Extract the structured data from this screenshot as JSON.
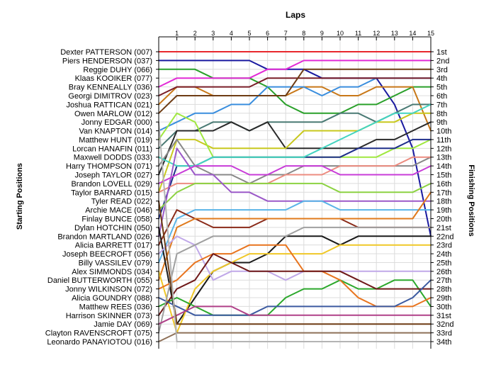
{
  "chart_data": {
    "type": "line",
    "title": "",
    "xlabel": "Laps",
    "ylabel_left": "Starting Positions",
    "ylabel_right": "Finishing Positions",
    "laps": [
      1,
      2,
      3,
      4,
      5,
      6,
      7,
      8,
      9,
      10,
      11,
      12,
      13,
      14,
      15
    ],
    "x_range": [
      0,
      15
    ],
    "y_range": [
      1,
      34
    ],
    "y_inverted": true,
    "grid": true,
    "drivers": [
      "Dexter PATTERSON (007)",
      "Piers HENDERSON (037)",
      "Reggie DUHY (066)",
      "Klaas KOOIKER (077)",
      "Bray KENNEALLY (036)",
      "Georgi DIMITROV (023)",
      "Joshua RATTICAN (021)",
      "Owen MARLOW (012)",
      "Jonny EDGAR (000)",
      "Van KNAPTON (014)",
      "Matthew HUNT (019)",
      "Lorcan HANAFIN (011)",
      "Maxwell DODDS (033)",
      "Harry THOMPSON (071)",
      "Joseph TAYLOR (027)",
      "Brandon LOVELL (029)",
      "Taylor BARNARD (015)",
      "Tyler READ (022)",
      "Archie MACE (046)",
      "Finlay BUNCE (058)",
      "Dylan HOTCHIN (050)",
      "Brandon MARTLAND (026)",
      "Alicia BARRETT (017)",
      "Joseph BEECROFT (056)",
      "Billy VASSILEV (079)",
      "Alex SIMMONDS (034)",
      "Daniel BUTTERWORTH (055)",
      "Jonny WILKINSON (072)",
      "Alicia GOUNDRY (088)",
      "Matthew REES (036)",
      "Harrison SKINNER (073)",
      "Jamie DAY (069)",
      "Clayton RAVENSCROFT (075)",
      "Leonardo PANAYIOTOU (016)"
    ],
    "finishing_positions": [
      "1st",
      "2nd",
      "3rd",
      "4th",
      "5th",
      "6th",
      "7th",
      "8th",
      "9th",
      "10th",
      "11th",
      "12th",
      "13th",
      "14th",
      "15th",
      "16th",
      "17th",
      "18th",
      "19th",
      "20th",
      "21st",
      "22nd",
      "23rd",
      "24th",
      "25th",
      "26th",
      "27th",
      "28th",
      "29th",
      "30th",
      "31st",
      "32nd",
      "33rd",
      "34th"
    ],
    "series": [
      {
        "color": "#e8282d",
        "positions": [
          1,
          1,
          1,
          1,
          1,
          1,
          1,
          1,
          1,
          1,
          1,
          1,
          1,
          1,
          1,
          1
        ]
      },
      {
        "color": "#1a1aa0",
        "positions": [
          2,
          2,
          2,
          2,
          2,
          2,
          3,
          3,
          3,
          4,
          4,
          4,
          4,
          7,
          12,
          22
        ]
      },
      {
        "color": "#2aa02a",
        "positions": [
          3,
          3,
          3,
          4,
          4,
          4,
          5,
          7,
          8,
          8,
          8,
          7,
          7,
          6,
          5,
          5
        ]
      },
      {
        "color": "#e22bd6",
        "positions": [
          5,
          4,
          4,
          4,
          4,
          4,
          3,
          3,
          2,
          2,
          2,
          2,
          2,
          2,
          2,
          2
        ]
      },
      {
        "color": "#c87818",
        "positions": [
          7,
          5,
          5,
          6,
          6,
          6,
          6,
          6,
          5,
          5,
          6,
          6,
          5,
          5,
          5,
          10
        ]
      },
      {
        "color": "#3a8ede",
        "positions": [
          10,
          9,
          8,
          8,
          7,
          7,
          5,
          5,
          5,
          6,
          5,
          5,
          4,
          4,
          4,
          4
        ]
      },
      {
        "color": "#7a1e28",
        "positions": [
          6,
          5,
          5,
          5,
          5,
          5,
          4,
          4,
          4,
          4,
          4,
          4,
          4,
          4,
          4,
          4
        ]
      },
      {
        "color": "#6e3c14",
        "positions": [
          8,
          6,
          6,
          6,
          6,
          6,
          6,
          6,
          3,
          3,
          3,
          3,
          3,
          3,
          3,
          3
        ]
      },
      {
        "color": "#4a7a74",
        "positions": [
          12,
          10,
          10,
          9,
          9,
          10,
          9,
          9,
          9,
          9,
          8,
          8,
          9,
          8,
          7,
          7
        ]
      },
      {
        "color": "#2a2a2a",
        "positions": [
          15,
          10,
          10,
          10,
          9,
          10,
          9,
          12,
          12,
          12,
          12,
          12,
          11,
          11,
          10,
          9
        ]
      },
      {
        "color": "#c8c81e",
        "positions": [
          17,
          11,
          11,
          12,
          12,
          12,
          12,
          12,
          10,
          10,
          10,
          10,
          9,
          9,
          8,
          8
        ]
      },
      {
        "color": "#a0e840",
        "positions": [
          11,
          8,
          9,
          13,
          13,
          13,
          13,
          13,
          13,
          13,
          13,
          13,
          13,
          12,
          12,
          11
        ]
      },
      {
        "color": "#888888",
        "positions": [
          14,
          11,
          14,
          15,
          15,
          16,
          15,
          15,
          14,
          14,
          14,
          14,
          14,
          14,
          14,
          13
        ]
      },
      {
        "color": "#1f2f8a",
        "positions": [
          20,
          14,
          14,
          13,
          13,
          13,
          13,
          13,
          13,
          13,
          13,
          12,
          12,
          12,
          11,
          11
        ]
      },
      {
        "color": "#44d4c0",
        "positions": [
          13,
          14,
          14,
          13,
          13,
          13,
          13,
          13,
          13,
          12,
          11,
          10,
          9,
          8,
          8,
          7
        ]
      },
      {
        "color": "#ec8c80",
        "positions": [
          17,
          16,
          16,
          16,
          16,
          16,
          16,
          15,
          15,
          15,
          14,
          14,
          14,
          14,
          13,
          13
        ]
      },
      {
        "color": "#8cd242",
        "positions": [
          19,
          17,
          16,
          16,
          16,
          16,
          16,
          16,
          16,
          16,
          17,
          17,
          17,
          17,
          17,
          16
        ]
      },
      {
        "color": "#9b59c8",
        "positions": [
          22,
          12,
          15,
          15,
          17,
          17,
          18,
          18,
          18,
          18,
          18,
          18,
          18,
          18,
          18,
          18
        ]
      },
      {
        "color": "#c83cd8",
        "positions": [
          16,
          15,
          14,
          14,
          14,
          15,
          15,
          14,
          14,
          14,
          15,
          15,
          15,
          15,
          15,
          14
        ]
      },
      {
        "color": "#5ab4e8",
        "positions": [
          25,
          20,
          19,
          19,
          19,
          19,
          19,
          19,
          18,
          18,
          19,
          19,
          19,
          19,
          19,
          19
        ]
      },
      {
        "color": "#8a2a18",
        "positions": [
          23,
          19,
          20,
          21,
          21,
          21,
          20,
          20,
          20,
          20,
          20,
          21,
          21,
          21,
          21,
          21
        ]
      },
      {
        "color": "#e07a1c",
        "positions": [
          27,
          21,
          20,
          20,
          20,
          20,
          20,
          20,
          20,
          20,
          20,
          20,
          20,
          20,
          20,
          17
        ]
      },
      {
        "color": "#1a1a1a",
        "positions": [
          21,
          32,
          29,
          26,
          25,
          25,
          24,
          22,
          22,
          22,
          23,
          22,
          22,
          22,
          22,
          22
        ]
      },
      {
        "color": "#f0c828",
        "positions": [
          26,
          33,
          28,
          26,
          25,
          24,
          24,
          24,
          24,
          24,
          23,
          23,
          23,
          23,
          23,
          23
        ]
      },
      {
        "color": "#c0a8e8",
        "positions": [
          24,
          22,
          23,
          27,
          26,
          26,
          26,
          27,
          26,
          26,
          26,
          26,
          26,
          26,
          26,
          26
        ]
      },
      {
        "color": "#2ca82c",
        "positions": [
          30,
          29,
          30,
          31,
          31,
          31,
          31,
          29,
          28,
          28,
          27,
          28,
          28,
          27,
          27,
          30
        ]
      },
      {
        "color": "#e8741e",
        "positions": [
          28,
          27,
          25,
          24,
          24,
          23,
          23,
          23,
          26,
          26,
          27,
          29,
          30,
          30,
          30,
          29
        ]
      },
      {
        "color": "#6e1818",
        "positions": [
          31,
          28,
          27,
          24,
          25,
          26,
          26,
          26,
          26,
          26,
          26,
          27,
          28,
          28,
          28,
          28
        ]
      },
      {
        "color": "#3c5aa0",
        "positions": [
          29,
          30,
          31,
          31,
          31,
          31,
          30,
          30,
          30,
          30,
          30,
          30,
          30,
          30,
          29,
          27
        ]
      },
      {
        "color": "#a0a0a0",
        "positions": [
          33,
          24,
          23,
          22,
          22,
          22,
          22,
          22,
          21,
          21,
          21,
          21,
          21,
          21,
          21,
          21
        ]
      },
      {
        "color": "#b04088",
        "positions": [
          32,
          31,
          30,
          30,
          30,
          31,
          31,
          31,
          31,
          31,
          31,
          31,
          31,
          31,
          31,
          31
        ]
      },
      {
        "color": "#6e3c14",
        "positions": [
          18,
          32,
          32,
          32,
          32,
          32,
          32,
          32,
          32,
          32,
          32,
          32,
          32,
          32,
          32,
          32
        ]
      },
      {
        "color": "#8e7058",
        "positions": [
          34,
          33,
          33,
          33,
          33,
          33,
          33,
          33,
          33,
          33,
          33,
          33,
          33,
          33,
          33,
          33
        ]
      },
      {
        "color": "#b4b4b4",
        "positions": [
          9,
          34,
          34,
          34,
          34,
          34,
          34,
          34,
          34,
          34,
          34,
          34,
          34,
          34,
          34,
          34
        ]
      }
    ]
  }
}
